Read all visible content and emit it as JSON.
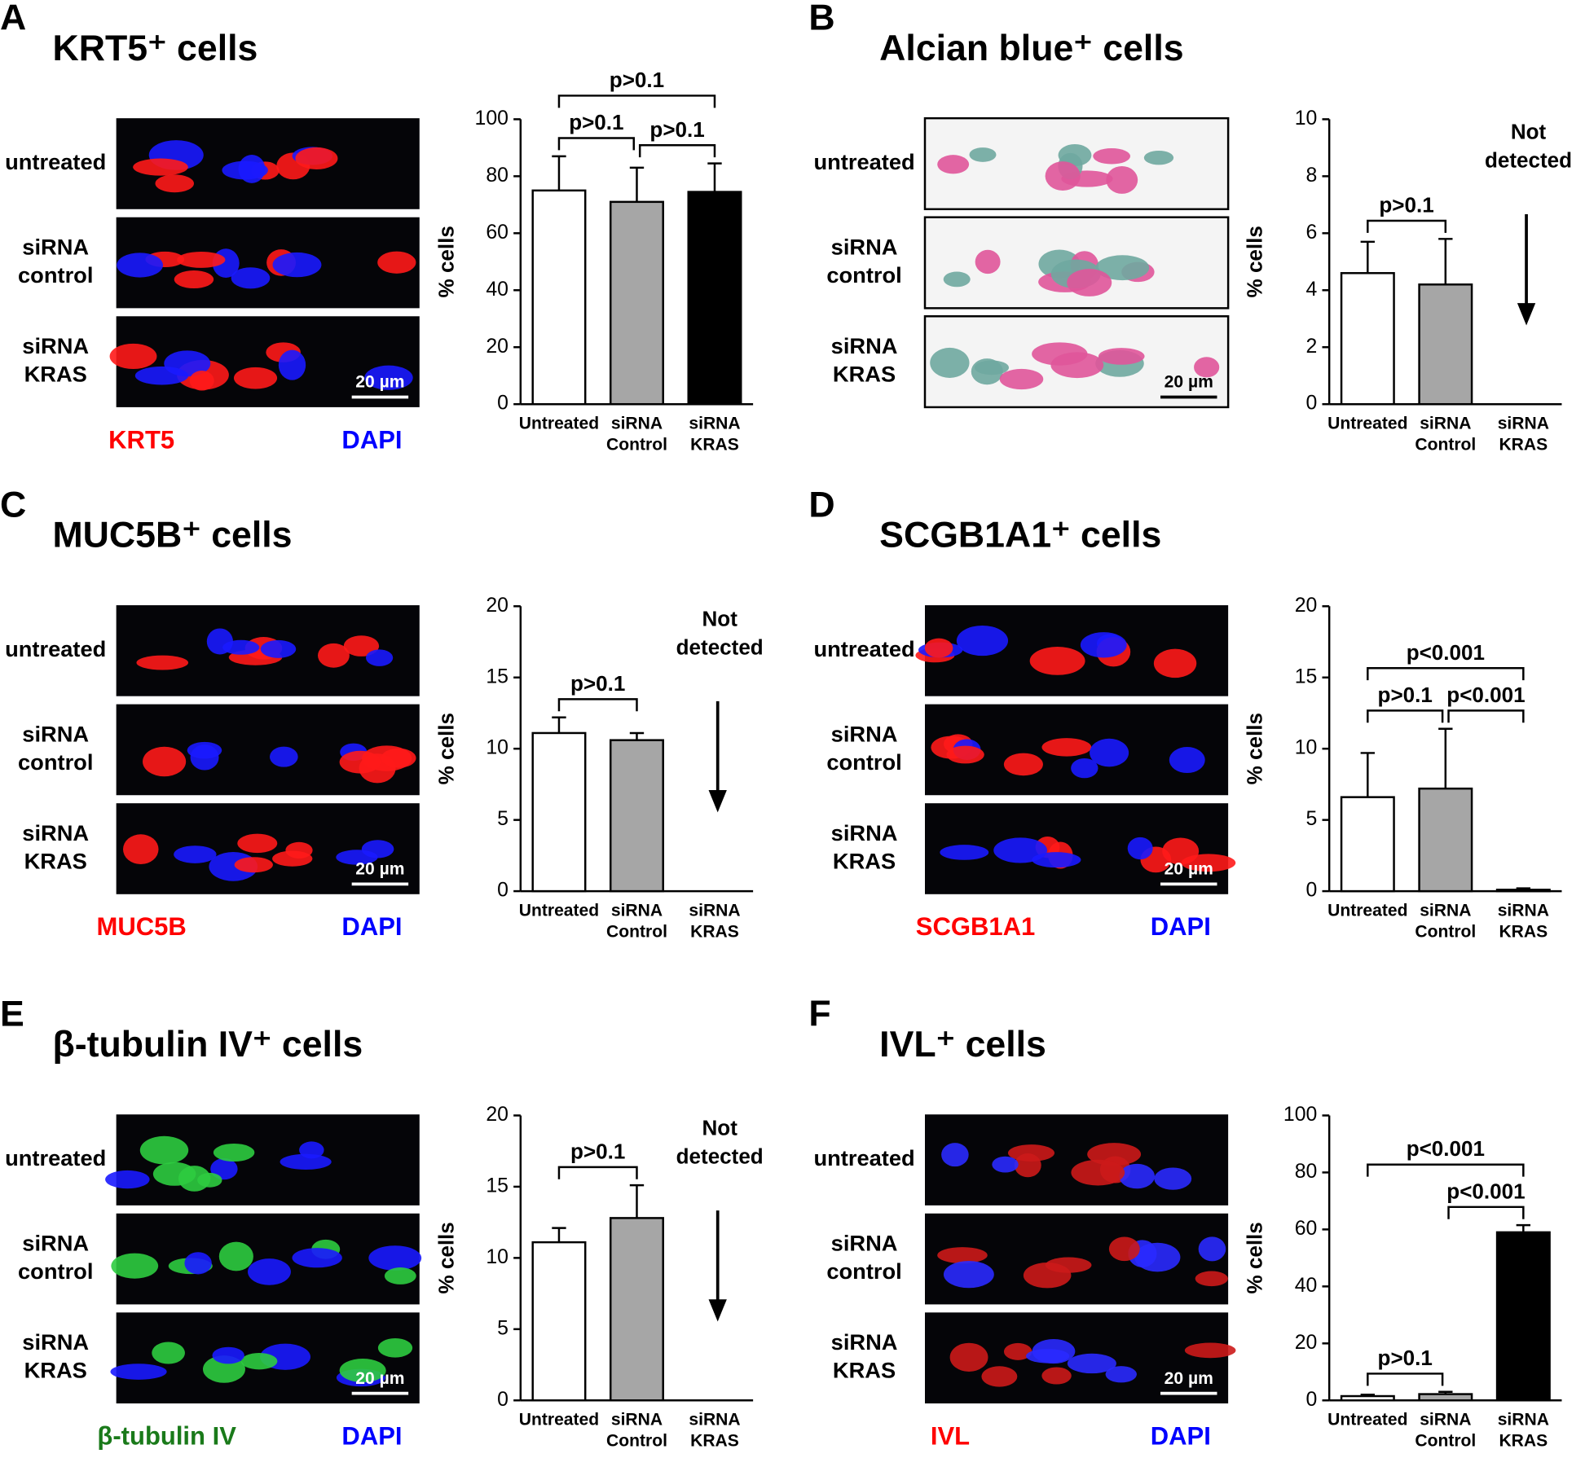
{
  "chart_data": [
    {
      "type": "bar",
      "panel": "A",
      "title": "KRT5⁺ cells",
      "image_rows": [
        [
          "untreated"
        ],
        [
          "siRNA",
          "control"
        ],
        [
          "siRNA",
          "KRAS"
        ]
      ],
      "scale_bar": "20 µm",
      "stains": [
        {
          "text": "KRT5",
          "color": "#ff0000"
        },
        {
          "text": "DAPI",
          "color": "#0000ff"
        }
      ],
      "ylabel": "% cells",
      "categories": [
        [
          "Untreated"
        ],
        [
          "siRNA",
          "Control"
        ],
        [
          "siRNA",
          "KRAS"
        ]
      ],
      "values": [
        75,
        71,
        74.5
      ],
      "errors": [
        12,
        12,
        10
      ],
      "colors": [
        "#ffffff",
        "#a6a6a6",
        "#000000"
      ],
      "ylim": [
        0,
        100
      ],
      "yticks": [
        0,
        20,
        40,
        60,
        80,
        100
      ],
      "annotations": [
        {
          "text": "p>0.1",
          "from": 0,
          "to": 1
        },
        {
          "text": "p>0.1",
          "from": 1,
          "to": 2
        },
        {
          "text": "p>0.1",
          "from": 0,
          "to": 2
        }
      ]
    },
    {
      "type": "bar",
      "panel": "B",
      "title": "Alcian blue⁺ cells",
      "image_rows": [
        [
          "untreated"
        ],
        [
          "siRNA",
          "control"
        ],
        [
          "siRNA",
          "KRAS"
        ]
      ],
      "scale_bar": "20 µm",
      "ylabel": "% cells",
      "categories": [
        [
          "Untreated"
        ],
        [
          "siRNA",
          "Control"
        ],
        [
          "siRNA",
          "KRAS"
        ]
      ],
      "values": [
        4.6,
        4.2,
        null
      ],
      "errors": [
        1.1,
        1.6,
        null
      ],
      "colors": [
        "#ffffff",
        "#a6a6a6",
        "#000000"
      ],
      "ylim": [
        0,
        10
      ],
      "yticks": [
        0,
        2,
        4,
        6,
        8,
        10
      ],
      "annotations": [
        {
          "text": "p>0.1",
          "from": 0,
          "to": 1
        }
      ],
      "note": [
        "Not",
        "detected"
      ]
    },
    {
      "type": "bar",
      "panel": "C",
      "title": "MUC5B⁺ cells",
      "image_rows": [
        [
          "untreated"
        ],
        [
          "siRNA",
          "control"
        ],
        [
          "siRNA",
          "KRAS"
        ]
      ],
      "scale_bar": "20 µm",
      "stains": [
        {
          "text": "MUC5B",
          "color": "#ff0000"
        },
        {
          "text": "DAPI",
          "color": "#0000ff"
        }
      ],
      "ylabel": "% cells",
      "categories": [
        [
          "Untreated"
        ],
        [
          "siRNA",
          "Control"
        ],
        [
          "siRNA",
          "KRAS"
        ]
      ],
      "values": [
        11.1,
        10.6,
        null
      ],
      "errors": [
        1.1,
        0.5,
        null
      ],
      "colors": [
        "#ffffff",
        "#a6a6a6",
        "#000000"
      ],
      "ylim": [
        0,
        20
      ],
      "yticks": [
        0,
        5,
        10,
        15,
        20
      ],
      "annotations": [
        {
          "text": "p>0.1",
          "from": 0,
          "to": 1
        }
      ],
      "note": [
        "Not",
        "detected"
      ]
    },
    {
      "type": "bar",
      "panel": "D",
      "title": "SCGB1A1⁺ cells",
      "image_rows": [
        [
          "untreated"
        ],
        [
          "siRNA",
          "control"
        ],
        [
          "siRNA",
          "KRAS"
        ]
      ],
      "scale_bar": "20 µm",
      "stains": [
        {
          "text": "SCGB1A1",
          "color": "#ff0000"
        },
        {
          "text": "DAPI",
          "color": "#0000ff"
        }
      ],
      "ylabel": "% cells",
      "categories": [
        [
          "Untreated"
        ],
        [
          "siRNA",
          "Control"
        ],
        [
          "siRNA",
          "KRAS"
        ]
      ],
      "values": [
        6.6,
        7.2,
        0.1
      ],
      "errors": [
        3.1,
        4.2,
        0.1
      ],
      "colors": [
        "#ffffff",
        "#a6a6a6",
        "#000000"
      ],
      "ylim": [
        0,
        20
      ],
      "yticks": [
        0,
        5,
        10,
        15,
        20
      ],
      "annotations": [
        {
          "text": "p>0.1",
          "from": 0,
          "to": 1
        },
        {
          "text": "p<0.001",
          "from": 1,
          "to": 2
        },
        {
          "text": "p<0.001",
          "from": 0,
          "to": 2
        }
      ]
    },
    {
      "type": "bar",
      "panel": "E",
      "title": "β-tubulin IV⁺ cells",
      "image_rows": [
        [
          "untreated"
        ],
        [
          "siRNA",
          "control"
        ],
        [
          "siRNA",
          "KRAS"
        ]
      ],
      "scale_bar": "20 µm",
      "stains": [
        {
          "text": "β-tubulin IV",
          "color": "#1a7a1a"
        },
        {
          "text": "DAPI",
          "color": "#0000ff"
        }
      ],
      "ylabel": "% cells",
      "categories": [
        [
          "Untreated"
        ],
        [
          "siRNA",
          "Control"
        ],
        [
          "siRNA",
          "KRAS"
        ]
      ],
      "values": [
        11.1,
        12.8,
        null
      ],
      "errors": [
        1.0,
        2.3,
        null
      ],
      "colors": [
        "#ffffff",
        "#a6a6a6",
        "#000000"
      ],
      "ylim": [
        0,
        20
      ],
      "yticks": [
        0,
        5,
        10,
        15,
        20
      ],
      "annotations": [
        {
          "text": "p>0.1",
          "from": 0,
          "to": 1
        }
      ],
      "note": [
        "Not",
        "detected"
      ]
    },
    {
      "type": "bar",
      "panel": "F",
      "title": "IVL⁺ cells",
      "image_rows": [
        [
          "untreated"
        ],
        [
          "siRNA",
          "control"
        ],
        [
          "siRNA",
          "KRAS"
        ]
      ],
      "scale_bar": "20 µm",
      "stains": [
        {
          "text": "IVL",
          "color": "#ff0000"
        },
        {
          "text": "DAPI",
          "color": "#0000ff"
        }
      ],
      "ylabel": "% cells",
      "categories": [
        [
          "Untreated"
        ],
        [
          "siRNA",
          "Control"
        ],
        [
          "siRNA",
          "KRAS"
        ]
      ],
      "values": [
        1.5,
        2.2,
        59
      ],
      "errors": [
        0.5,
        0.8,
        2.5
      ],
      "colors": [
        "#ffffff",
        "#a6a6a6",
        "#000000"
      ],
      "ylim": [
        0,
        100
      ],
      "yticks": [
        0,
        20,
        40,
        60,
        80,
        100
      ],
      "annotations": [
        {
          "text": "p>0.1",
          "from": 0,
          "to": 1
        },
        {
          "text": "p<0.001",
          "from": 1,
          "to": 2
        },
        {
          "text": "p<0.001",
          "from": 0,
          "to": 2
        }
      ]
    }
  ]
}
